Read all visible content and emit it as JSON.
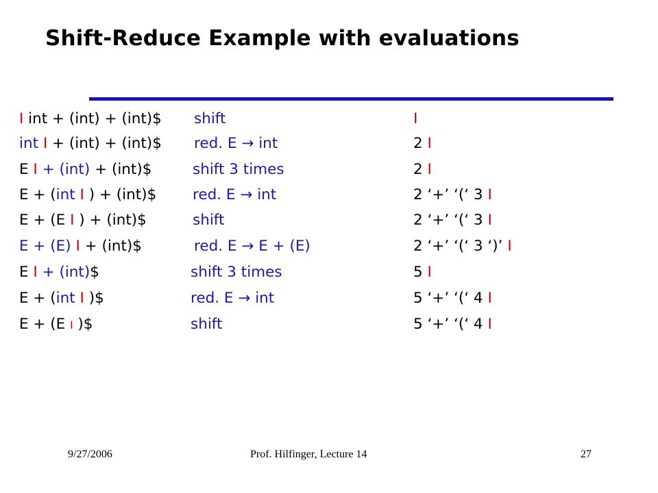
{
  "title": "Shift-Reduce Example with evaluations",
  "rows": [
    {
      "input": [
        {
          "t": "I",
          "c": "red"
        },
        {
          "t": " int + (int) + (int)$",
          "c": "black"
        }
      ],
      "action": [
        {
          "t": "shift",
          "c": "blue"
        }
      ],
      "stack": [
        {
          "t": "I",
          "c": "red"
        }
      ]
    },
    {
      "input": [
        {
          "t": "int ",
          "c": "blue"
        },
        {
          "t": "I",
          "c": "red"
        },
        {
          "t": " + (int) + (int)$",
          "c": "black"
        }
      ],
      "action": [
        {
          "t": "red. E ",
          "c": "blue"
        },
        {
          "t": "→",
          "c": "blue"
        },
        {
          "t": " int",
          "c": "blue"
        }
      ],
      "stack": [
        {
          "t": "2 ",
          "c": "black"
        },
        {
          "t": "I",
          "c": "red"
        }
      ]
    },
    {
      "input": [
        {
          "t": "E ",
          "c": "black"
        },
        {
          "t": "I",
          "c": "red"
        },
        {
          "t": " + (int)",
          "c": "blue"
        },
        {
          "t": " + (int)$",
          "c": "black"
        }
      ],
      "action": [
        {
          "t": "shift 3 times",
          "c": "blue"
        }
      ],
      "stack": [
        {
          "t": "2 ",
          "c": "black"
        },
        {
          "t": "I",
          "c": "red"
        }
      ]
    },
    {
      "input": [
        {
          "t": "E + (",
          "c": "black"
        },
        {
          "t": "int ",
          "c": "blue"
        },
        {
          "t": "I",
          "c": "red"
        },
        {
          "t": " ) + (int)$",
          "c": "black"
        }
      ],
      "action": [
        {
          "t": "red. E ",
          "c": "blue"
        },
        {
          "t": "→",
          "c": "blue"
        },
        {
          "t": " int",
          "c": "blue"
        }
      ],
      "stack": [
        {
          "t": "2 ‘+’ ‘(‘ 3 ",
          "c": "black"
        },
        {
          "t": "I",
          "c": "red"
        }
      ]
    },
    {
      "input": [
        {
          "t": "E + (E ",
          "c": "black"
        },
        {
          "t": "I",
          "c": "red"
        },
        {
          "t": " ) + (int)$",
          "c": "black"
        }
      ],
      "action": [
        {
          "t": "shift",
          "c": "blue"
        }
      ],
      "stack": [
        {
          "t": "2 ‘+’ ‘(‘ 3 ",
          "c": "black"
        },
        {
          "t": "I",
          "c": "red"
        }
      ]
    },
    {
      "input": [
        {
          "t": "E + (E) ",
          "c": "blue"
        },
        {
          "t": "I",
          "c": "red"
        },
        {
          "t": " + (int)$",
          "c": "black"
        }
      ],
      "action": [
        {
          "t": "red. E ",
          "c": "blue"
        },
        {
          "t": "→",
          "c": "blue"
        },
        {
          "t": " E + (E)",
          "c": "blue"
        }
      ],
      "stack": [
        {
          "t": "2 ‘+’ ‘(‘ 3 ‘)’ ",
          "c": "black"
        },
        {
          "t": "I",
          "c": "red"
        }
      ]
    },
    {
      "input": [
        {
          "t": "E ",
          "c": "black"
        },
        {
          "t": "I",
          "c": "red"
        },
        {
          "t": " + (int)",
          "c": "blue"
        },
        {
          "t": "$",
          "c": "black"
        }
      ],
      "action": [
        {
          "t": "shift 3 times",
          "c": "blue"
        }
      ],
      "stack": [
        {
          "t": "5 ",
          "c": "black"
        },
        {
          "t": "I",
          "c": "red"
        }
      ]
    },
    {
      "input": [
        {
          "t": "E + (",
          "c": "black"
        },
        {
          "t": "int ",
          "c": "blue"
        },
        {
          "t": "I",
          "c": "red"
        },
        {
          "t": " )$",
          "c": "black"
        }
      ],
      "action": [
        {
          "t": "red. E ",
          "c": "blue"
        },
        {
          "t": "→",
          "c": "blue"
        },
        {
          "t": " int",
          "c": "blue"
        }
      ],
      "stack": [
        {
          "t": "5 ‘+’ ‘(‘ 4 ",
          "c": "black"
        },
        {
          "t": "I",
          "c": "red"
        }
      ]
    },
    {
      "input": [
        {
          "t": "E + (E ",
          "c": "black"
        },
        {
          "t": "I",
          "c": "red",
          "s": "small"
        },
        {
          "t": " )$",
          "c": "black"
        }
      ],
      "action": [
        {
          "t": "shift",
          "c": "blue"
        }
      ],
      "stack": [
        {
          "t": "5 ‘+’ ‘(‘ 4 ",
          "c": "black"
        },
        {
          "t": "I",
          "c": "red"
        }
      ]
    }
  ],
  "footer": {
    "date": "9/27/2006",
    "center": "Prof. Hilfinger, Lecture 14",
    "page": "27"
  }
}
